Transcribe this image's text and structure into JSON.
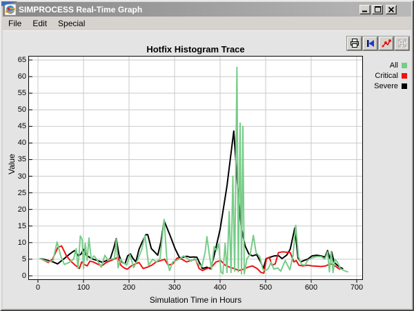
{
  "window": {
    "title": "SIMPROCESS Real-Time Graph",
    "controls": [
      "minimize",
      "maximize",
      "close"
    ]
  },
  "menu": {
    "items": [
      {
        "label": "File"
      },
      {
        "label": "Edit"
      },
      {
        "label": "Special"
      }
    ]
  },
  "toolbar": {
    "icons": [
      "printer",
      "rewind-to-start",
      "plot-points",
      "fit-to-window"
    ],
    "disabled": [
      "fit-to-window"
    ]
  },
  "chart_data": {
    "type": "line",
    "title": "Hotfix Histogram Trace",
    "xlabel": "Simulation Time in Hours",
    "ylabel": "Value",
    "xlim": [
      0,
      700
    ],
    "ylim": [
      0,
      65
    ],
    "x_ticks": [
      0,
      100,
      200,
      300,
      400,
      500,
      600,
      700
    ],
    "y_ticks": [
      0,
      5,
      10,
      15,
      20,
      25,
      30,
      35,
      40,
      45,
      50,
      55,
      60,
      65
    ],
    "grid": true,
    "plot_background": "#ffffff",
    "grid_color": "#c9c9c9",
    "legend_position": "right-top",
    "series": [
      {
        "name": "All",
        "color": "#77cc88",
        "points": [
          [
            5,
            5.2
          ],
          [
            15,
            4.6
          ],
          [
            25,
            4.2
          ],
          [
            33,
            4.6
          ],
          [
            42,
            10.2
          ],
          [
            50,
            6
          ],
          [
            58,
            3.4
          ],
          [
            68,
            4
          ],
          [
            78,
            5
          ],
          [
            84,
            8.2
          ],
          [
            88,
            2.2
          ],
          [
            93,
            12
          ],
          [
            97,
            11
          ],
          [
            100,
            2.2
          ],
          [
            104,
            9.8
          ],
          [
            108,
            4.6
          ],
          [
            112,
            11.4
          ],
          [
            117,
            5
          ],
          [
            123,
            6
          ],
          [
            130,
            4.8
          ],
          [
            139,
            2.6
          ],
          [
            147,
            6.2
          ],
          [
            153,
            4.8
          ],
          [
            160,
            5
          ],
          [
            168,
            5.2
          ],
          [
            172,
            11
          ],
          [
            176,
            2.4
          ],
          [
            181,
            5
          ],
          [
            187,
            4
          ],
          [
            195,
            3.2
          ],
          [
            202,
            6.4
          ],
          [
            210,
            2.5
          ],
          [
            219,
            4.8
          ],
          [
            228,
            8
          ],
          [
            235,
            12.2
          ],
          [
            243,
            3.2
          ],
          [
            252,
            5
          ],
          [
            260,
            4.2
          ],
          [
            268,
            5.2
          ],
          [
            277,
            17
          ],
          [
            283,
            5
          ],
          [
            289,
            1.6
          ],
          [
            296,
            4.2
          ],
          [
            304,
            4.6
          ],
          [
            312,
            5.2
          ],
          [
            320,
            6
          ],
          [
            328,
            5.2
          ],
          [
            336,
            4.4
          ],
          [
            344,
            5.2
          ],
          [
            352,
            3.6
          ],
          [
            360,
            2.8
          ],
          [
            367,
            7
          ],
          [
            371,
            11.8
          ],
          [
            377,
            5.8
          ],
          [
            381,
            2
          ],
          [
            387,
            8.8
          ],
          [
            392,
            7.6
          ],
          [
            397,
            9.6
          ],
          [
            402,
            1.2
          ],
          [
            406,
            0.6
          ],
          [
            411,
            9.8
          ],
          [
            415,
            1
          ],
          [
            420,
            19.4
          ],
          [
            424,
            1
          ],
          [
            428,
            30
          ],
          [
            432,
            1.4
          ],
          [
            437,
            62.8
          ],
          [
            440,
            1.2
          ],
          [
            444,
            46
          ],
          [
            447,
            0.6
          ],
          [
            450,
            45
          ],
          [
            453,
            0.6
          ],
          [
            459,
            5.2
          ],
          [
            466,
            6.4
          ],
          [
            473,
            12.2
          ],
          [
            479,
            7
          ],
          [
            487,
            5.8
          ],
          [
            494,
            2
          ],
          [
            500,
            1.6
          ],
          [
            506,
            2.2
          ],
          [
            512,
            4.2
          ],
          [
            518,
            2
          ],
          [
            526,
            2.4
          ],
          [
            533,
            1.4
          ],
          [
            543,
            4.6
          ],
          [
            553,
            1.8
          ],
          [
            560,
            6
          ],
          [
            566,
            15.2
          ],
          [
            572,
            5.8
          ],
          [
            579,
            3.4
          ],
          [
            586,
            3.2
          ],
          [
            593,
            4.8
          ],
          [
            602,
            5.4
          ],
          [
            612,
            5.8
          ],
          [
            622,
            5.8
          ],
          [
            630,
            5
          ],
          [
            636,
            7.2
          ],
          [
            640,
            1.2
          ],
          [
            644,
            7.4
          ],
          [
            648,
            1
          ],
          [
            652,
            5
          ],
          [
            658,
            4
          ],
          [
            664,
            2.2
          ],
          [
            672,
            1.6
          ],
          [
            680,
            1.2
          ]
        ]
      },
      {
        "name": "Critical",
        "color": "#ee1111",
        "points": [
          [
            5,
            5.2
          ],
          [
            14,
            4.6
          ],
          [
            23,
            4
          ],
          [
            32,
            5
          ],
          [
            44,
            8.6
          ],
          [
            52,
            9
          ],
          [
            62,
            6.2
          ],
          [
            72,
            4.4
          ],
          [
            82,
            3.2
          ],
          [
            91,
            2.2
          ],
          [
            96,
            4.2
          ],
          [
            102,
            3.4
          ],
          [
            108,
            3
          ],
          [
            114,
            4.4
          ],
          [
            121,
            4.2
          ],
          [
            130,
            3.6
          ],
          [
            140,
            3
          ],
          [
            150,
            4
          ],
          [
            160,
            4.6
          ],
          [
            170,
            5.2
          ],
          [
            176,
            5.6
          ],
          [
            182,
            3.2
          ],
          [
            189,
            2.4
          ],
          [
            196,
            2
          ],
          [
            205,
            3
          ],
          [
            214,
            3.6
          ],
          [
            222,
            4
          ],
          [
            231,
            2.2
          ],
          [
            240,
            2.6
          ],
          [
            250,
            3.2
          ],
          [
            260,
            4.2
          ],
          [
            270,
            4.6
          ],
          [
            278,
            5
          ],
          [
            286,
            3.2
          ],
          [
            296,
            3.6
          ],
          [
            306,
            5.4
          ],
          [
            316,
            5
          ],
          [
            326,
            4.2
          ],
          [
            336,
            4.6
          ],
          [
            346,
            5
          ],
          [
            354,
            2.2
          ],
          [
            361,
            1.6
          ],
          [
            371,
            2.2
          ],
          [
            381,
            2.6
          ],
          [
            391,
            4.2
          ],
          [
            401,
            4.6
          ],
          [
            411,
            3.2
          ],
          [
            421,
            2.6
          ],
          [
            431,
            2.2
          ],
          [
            441,
            1.6
          ],
          [
            451,
            2
          ],
          [
            461,
            2.6
          ],
          [
            471,
            3
          ],
          [
            481,
            2.2
          ],
          [
            490,
            1
          ],
          [
            496,
            0.8
          ],
          [
            502,
            5.2
          ],
          [
            508,
            5.6
          ],
          [
            514,
            3.2
          ],
          [
            521,
            3.6
          ],
          [
            528,
            7
          ],
          [
            537,
            7.2
          ],
          [
            546,
            7.1
          ],
          [
            554,
            7
          ],
          [
            562,
            4.2
          ],
          [
            567,
            4.6
          ],
          [
            573,
            3.2
          ],
          [
            582,
            3
          ],
          [
            592,
            3.2
          ],
          [
            602,
            3
          ],
          [
            612,
            2.9
          ],
          [
            622,
            2.8
          ],
          [
            632,
            3
          ],
          [
            641,
            3.6
          ],
          [
            648,
            3.4
          ],
          [
            656,
            2.6
          ],
          [
            663,
            2
          ]
        ]
      },
      {
        "name": "Severe",
        "color": "#000000",
        "points": [
          [
            5,
            5.2
          ],
          [
            15,
            4.9
          ],
          [
            25,
            4.5
          ],
          [
            33,
            4.2
          ],
          [
            43,
            3.6
          ],
          [
            56,
            5
          ],
          [
            70,
            6.6
          ],
          [
            80,
            7.6
          ],
          [
            89,
            6
          ],
          [
            95,
            6.6
          ],
          [
            100,
            8
          ],
          [
            106,
            6.2
          ],
          [
            113,
            5.6
          ],
          [
            121,
            5
          ],
          [
            131,
            4.6
          ],
          [
            141,
            4.1
          ],
          [
            151,
            4.6
          ],
          [
            159,
            5.2
          ],
          [
            166,
            8.2
          ],
          [
            172,
            11.2
          ],
          [
            178,
            6.2
          ],
          [
            184,
            4.2
          ],
          [
            191,
            3.6
          ],
          [
            197,
            6
          ],
          [
            203,
            6.6
          ],
          [
            209,
            5.2
          ],
          [
            215,
            4.2
          ],
          [
            222,
            8
          ],
          [
            229,
            10.2
          ],
          [
            237,
            12.4
          ],
          [
            241,
            12.4
          ],
          [
            249,
            8.2
          ],
          [
            256,
            7.2
          ],
          [
            263,
            6.2
          ],
          [
            270,
            10.2
          ],
          [
            277,
            16.6
          ],
          [
            290,
            12.2
          ],
          [
            301,
            8.2
          ],
          [
            311,
            5.4
          ],
          [
            319,
            5.6
          ],
          [
            327,
            5.9
          ],
          [
            334,
            5.6
          ],
          [
            342,
            5.7
          ],
          [
            349,
            5.6
          ],
          [
            354,
            4.2
          ],
          [
            361,
            2.2
          ],
          [
            371,
            2.6
          ],
          [
            379,
            2.1
          ],
          [
            386,
            5.6
          ],
          [
            400,
            14
          ],
          [
            415,
            27
          ],
          [
            430,
            43.6
          ],
          [
            438,
            28
          ],
          [
            446,
            15
          ],
          [
            455,
            9
          ],
          [
            463,
            6.6
          ],
          [
            471,
            6
          ],
          [
            480,
            6.4
          ],
          [
            489,
            4.2
          ],
          [
            495,
            2.2
          ],
          [
            501,
            5.2
          ],
          [
            510,
            5.6
          ],
          [
            519,
            6
          ],
          [
            528,
            6.1
          ],
          [
            536,
            5.2
          ],
          [
            546,
            6.2
          ],
          [
            554,
            8
          ],
          [
            564,
            14.4
          ],
          [
            571,
            5.4
          ],
          [
            577,
            4.2
          ],
          [
            584,
            4.6
          ],
          [
            592,
            5
          ],
          [
            602,
            6
          ],
          [
            612,
            6.2
          ],
          [
            622,
            6
          ],
          [
            630,
            5.6
          ],
          [
            636,
            7.6
          ],
          [
            641,
            5.2
          ],
          [
            645,
            7.2
          ],
          [
            650,
            4.2
          ],
          [
            657,
            3.2
          ],
          [
            663,
            2.6
          ],
          [
            669,
            2.2
          ]
        ]
      }
    ]
  }
}
